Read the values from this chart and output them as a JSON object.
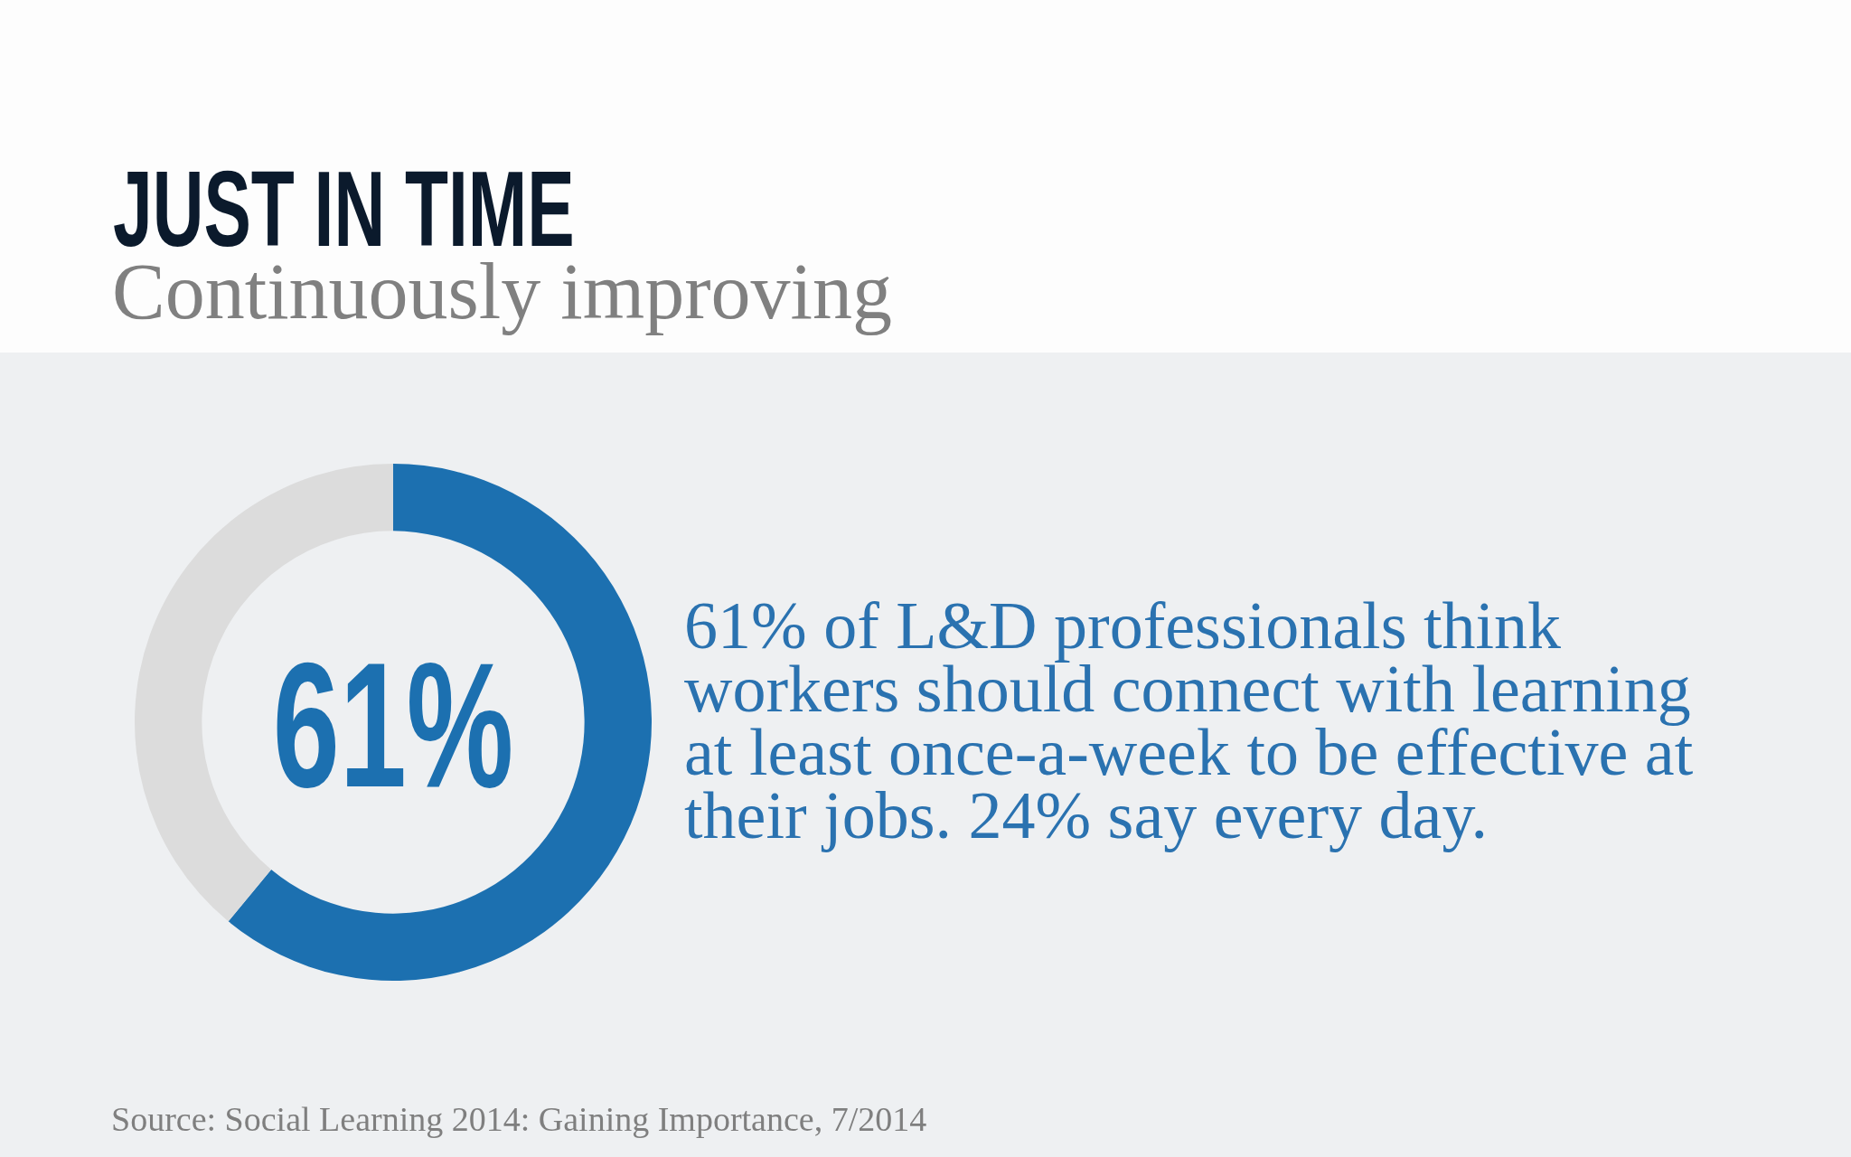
{
  "chart_data": {
    "type": "donut",
    "title": "JUST IN TIME",
    "subtitle": "Continuously improving",
    "categories": [
      null,
      null
    ],
    "values": [
      61,
      39
    ],
    "colors": [
      "#1c70b0",
      "#dcdcdc"
    ],
    "value_labels": [
      "61%",
      null
    ],
    "annotations": [
      "61% of L&D professionals think workers should connect with learning at least once-a-week to be effective at their jobs. 24% say every day.",
      "Source: Social Learning 2014: Gaining Importance, 7/2014"
    ]
  }
}
